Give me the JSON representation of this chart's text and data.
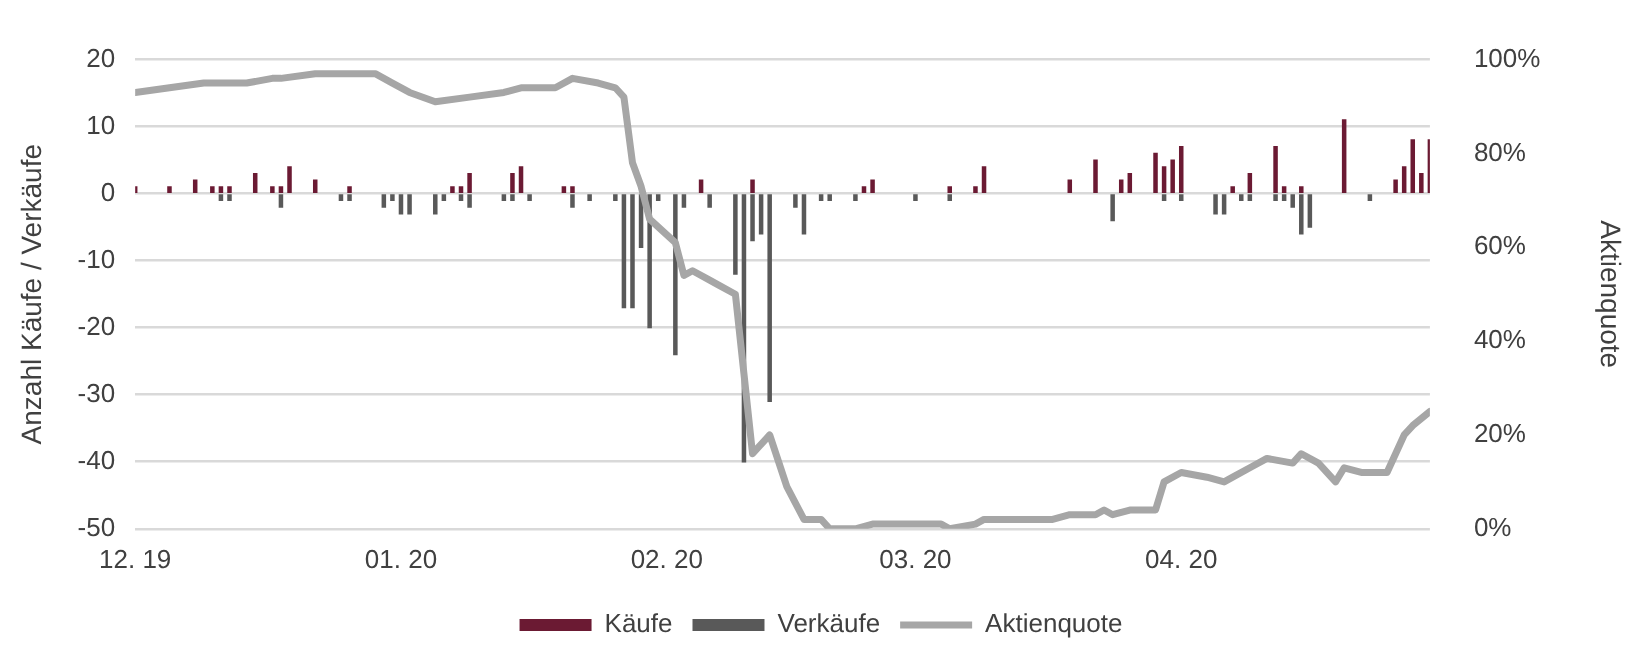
{
  "chart_data": {
    "type": "bar",
    "ylabel": "Anzahl Käufe / Verkäufe",
    "y2label": "Aktienquote",
    "xlim": [
      "2019-12-01",
      "2020-04-30"
    ],
    "xticks": [
      {
        "value": "2019-12-01",
        "label": "12. 19"
      },
      {
        "value": "2020-01-01",
        "label": "01. 20"
      },
      {
        "value": "2020-02-01",
        "label": "02. 20"
      },
      {
        "value": "2020-03-01",
        "label": "03. 20"
      },
      {
        "value": "2020-04-01",
        "label": "04. 20"
      }
    ],
    "ylim": [
      -50,
      20
    ],
    "yticks": [
      -50,
      -40,
      -30,
      -20,
      -10,
      0,
      10,
      20
    ],
    "y2lim": [
      0,
      100
    ],
    "y2ticks": [
      {
        "value": 0,
        "label": "0%"
      },
      {
        "value": 20,
        "label": "20%"
      },
      {
        "value": 40,
        "label": "40%"
      },
      {
        "value": 60,
        "label": "60%"
      },
      {
        "value": 80,
        "label": "80%"
      },
      {
        "value": 100,
        "label": "100%"
      }
    ],
    "grid": "y",
    "legend": "bottom",
    "series": [
      {
        "name": "Käufe",
        "color": "#6b1a33",
        "x": [
          "2019-12-01",
          "2019-12-05",
          "2019-12-08",
          "2019-12-10",
          "2019-12-11",
          "2019-12-12",
          "2019-12-15",
          "2019-12-17",
          "2019-12-18",
          "2019-12-19",
          "2019-12-22",
          "2019-12-26",
          "2020-01-07",
          "2020-01-08",
          "2020-01-09",
          "2020-01-14",
          "2020-01-15",
          "2020-01-20",
          "2020-01-21",
          "2020-02-05",
          "2020-02-11",
          "2020-02-24",
          "2020-02-25",
          "2020-03-05",
          "2020-03-08",
          "2020-03-09",
          "2020-03-19",
          "2020-03-22",
          "2020-03-25",
          "2020-03-26",
          "2020-03-29",
          "2020-03-30",
          "2020-03-31",
          "2020-04-01",
          "2020-04-07",
          "2020-04-09",
          "2020-04-12",
          "2020-04-13",
          "2020-04-15",
          "2020-04-20",
          "2020-04-26",
          "2020-04-27",
          "2020-04-28",
          "2020-04-29",
          "2020-04-30"
        ],
        "values": [
          1,
          1,
          2,
          1,
          1,
          1,
          3,
          1,
          1,
          4,
          2,
          1,
          1,
          1,
          3,
          3,
          4,
          1,
          1,
          2,
          2,
          1,
          2,
          1,
          1,
          4,
          2,
          5,
          2,
          3,
          6,
          4,
          5,
          7,
          1,
          3,
          7,
          1,
          1,
          11,
          2,
          4,
          8,
          3,
          8
        ]
      },
      {
        "name": "Verkäufe",
        "color": "#595959",
        "x": [
          "2019-12-11",
          "2019-12-12",
          "2019-12-18",
          "2019-12-25",
          "2019-12-26",
          "2019-12-30",
          "2019-12-31",
          "2020-01-01",
          "2020-01-02",
          "2020-01-05",
          "2020-01-06",
          "2020-01-08",
          "2020-01-09",
          "2020-01-13",
          "2020-01-14",
          "2020-01-16",
          "2020-01-21",
          "2020-01-23",
          "2020-01-26",
          "2020-01-27",
          "2020-01-28",
          "2020-01-29",
          "2020-01-30",
          "2020-01-31",
          "2020-02-02",
          "2020-02-03",
          "2020-02-06",
          "2020-02-09",
          "2020-02-10",
          "2020-02-11",
          "2020-02-12",
          "2020-02-13",
          "2020-02-16",
          "2020-02-17",
          "2020-02-19",
          "2020-02-20",
          "2020-02-23",
          "2020-03-01",
          "2020-03-05",
          "2020-03-24",
          "2020-03-30",
          "2020-04-01",
          "2020-04-05",
          "2020-04-06",
          "2020-04-08",
          "2020-04-09",
          "2020-04-12",
          "2020-04-13",
          "2020-04-14",
          "2020-04-15",
          "2020-04-16",
          "2020-04-23"
        ],
        "values": [
          -1,
          -1,
          -2,
          -1,
          -1,
          -2,
          -1,
          -3,
          -3,
          -3,
          -1,
          -1,
          -2,
          -1,
          -1,
          -1,
          -2,
          -1,
          -1,
          -17,
          -17,
          -8,
          -20,
          -1,
          -24,
          -2,
          -2,
          -12,
          -40,
          -7,
          -6,
          -31,
          -2,
          -6,
          -1,
          -1,
          -1,
          -1,
          -1,
          -4,
          -1,
          -1,
          -3,
          -3,
          -1,
          -1,
          -1,
          -1,
          -2,
          -6,
          -5,
          -1
        ]
      },
      {
        "name": "Aktienquote",
        "type": "line",
        "axis": "y2",
        "color": "#a6a6a6",
        "x": [
          "2019-12-01",
          "2019-12-05",
          "2019-12-09",
          "2019-12-11",
          "2019-12-14",
          "2019-12-17",
          "2019-12-18",
          "2019-12-22",
          "2019-12-26",
          "2019-12-29",
          "2019-12-31",
          "2020-01-02",
          "2020-01-05",
          "2020-01-09",
          "2020-01-13",
          "2020-01-15",
          "2020-01-19",
          "2020-01-21",
          "2020-01-24",
          "2020-01-26",
          "2020-01-27",
          "2020-01-28",
          "2020-01-29",
          "2020-01-30",
          "2020-02-02",
          "2020-02-03",
          "2020-02-04",
          "2020-02-06",
          "2020-02-07",
          "2020-02-09",
          "2020-02-10",
          "2020-02-11",
          "2020-02-13",
          "2020-02-15",
          "2020-02-17",
          "2020-02-19",
          "2020-02-20",
          "2020-02-23",
          "2020-02-25",
          "2020-03-04",
          "2020-03-05",
          "2020-03-08",
          "2020-03-09",
          "2020-03-12",
          "2020-03-17",
          "2020-03-19",
          "2020-03-22",
          "2020-03-23",
          "2020-03-24",
          "2020-03-26",
          "2020-03-29",
          "2020-03-30",
          "2020-04-01",
          "2020-04-04",
          "2020-04-06",
          "2020-04-07",
          "2020-04-09",
          "2020-04-11",
          "2020-04-14",
          "2020-04-15",
          "2020-04-17",
          "2020-04-19",
          "2020-04-20",
          "2020-04-22",
          "2020-04-25",
          "2020-04-27",
          "2020-04-28",
          "2020-04-30"
        ],
        "values": [
          93,
          94,
          95,
          95,
          95,
          96,
          96,
          97,
          97,
          97,
          95,
          93,
          91,
          92,
          93,
          94,
          94,
          96,
          95,
          94,
          92,
          78,
          73,
          66,
          61,
          54,
          55,
          53,
          52,
          50,
          33,
          16,
          20,
          9,
          2,
          2,
          0,
          0,
          1,
          1,
          0,
          1,
          2,
          2,
          2,
          3,
          3,
          4,
          3,
          4,
          4,
          10,
          12,
          11,
          10,
          11,
          13,
          15,
          14,
          16,
          14,
          10,
          13,
          12,
          12,
          20,
          22,
          25
        ]
      }
    ]
  }
}
